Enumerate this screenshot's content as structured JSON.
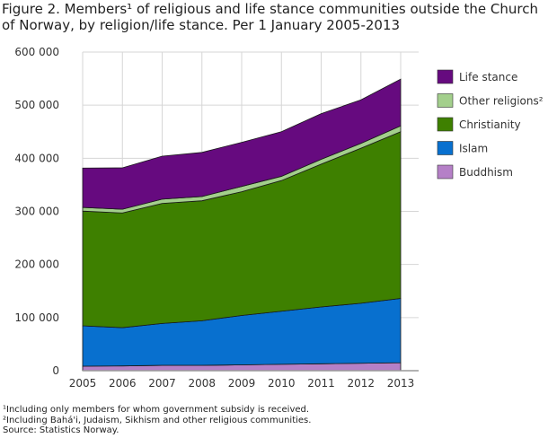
{
  "chart_data": {
    "type": "area",
    "stacked": true,
    "title": "Figure 2. Members¹ of religious and life stance communities outside the Church of Norway, by religion/life stance. Per 1 January 2005-2013",
    "title_lines": [
      "Figure 2. Members¹ of religious and life stance communities outside the Church",
      "of Norway, by religion/life stance. Per 1 January 2005-2013"
    ],
    "x": [
      "2005",
      "2006",
      "2007",
      "2008",
      "2009",
      "2010",
      "2011",
      "2012",
      "2013"
    ],
    "ylim": [
      0,
      600000
    ],
    "yticks": [
      0,
      100000,
      200000,
      300000,
      400000,
      500000,
      600000
    ],
    "ytick_labels": [
      "0",
      "100 000",
      "200 000",
      "300 000",
      "400 000",
      "500 000",
      "600 000"
    ],
    "grid": true,
    "legend_position": "right",
    "series": [
      {
        "name": "Buddhism",
        "color": "#b580c7",
        "values": [
          8500,
          9000,
          10000,
          10000,
          11000,
          12000,
          13000,
          14000,
          15000
        ]
      },
      {
        "name": "Islam",
        "color": "#0870cf",
        "values": [
          76000,
          72000,
          79000,
          84000,
          93000,
          100000,
          107000,
          113000,
          121000
        ]
      },
      {
        "name": "Christianity",
        "color": "#3e8000",
        "values": [
          216000,
          216000,
          226000,
          226000,
          233000,
          246000,
          269000,
          292000,
          314000
        ]
      },
      {
        "name": "Other religions²",
        "color": "#a3cf8c",
        "values": [
          7000,
          7000,
          8000,
          8000,
          10000,
          8000,
          9000,
          9000,
          11000
        ]
      },
      {
        "name": "Life stance",
        "color": "#660a7f",
        "values": [
          74000,
          78000,
          81000,
          83000,
          83000,
          84000,
          86000,
          82000,
          88000
        ]
      }
    ],
    "footnotes": [
      "¹Including only members for whom government subsidy is received.",
      "²Including Bahá'i, Judaism, Sikhism and other religious communities.",
      "Source: Statistics Norway."
    ]
  }
}
